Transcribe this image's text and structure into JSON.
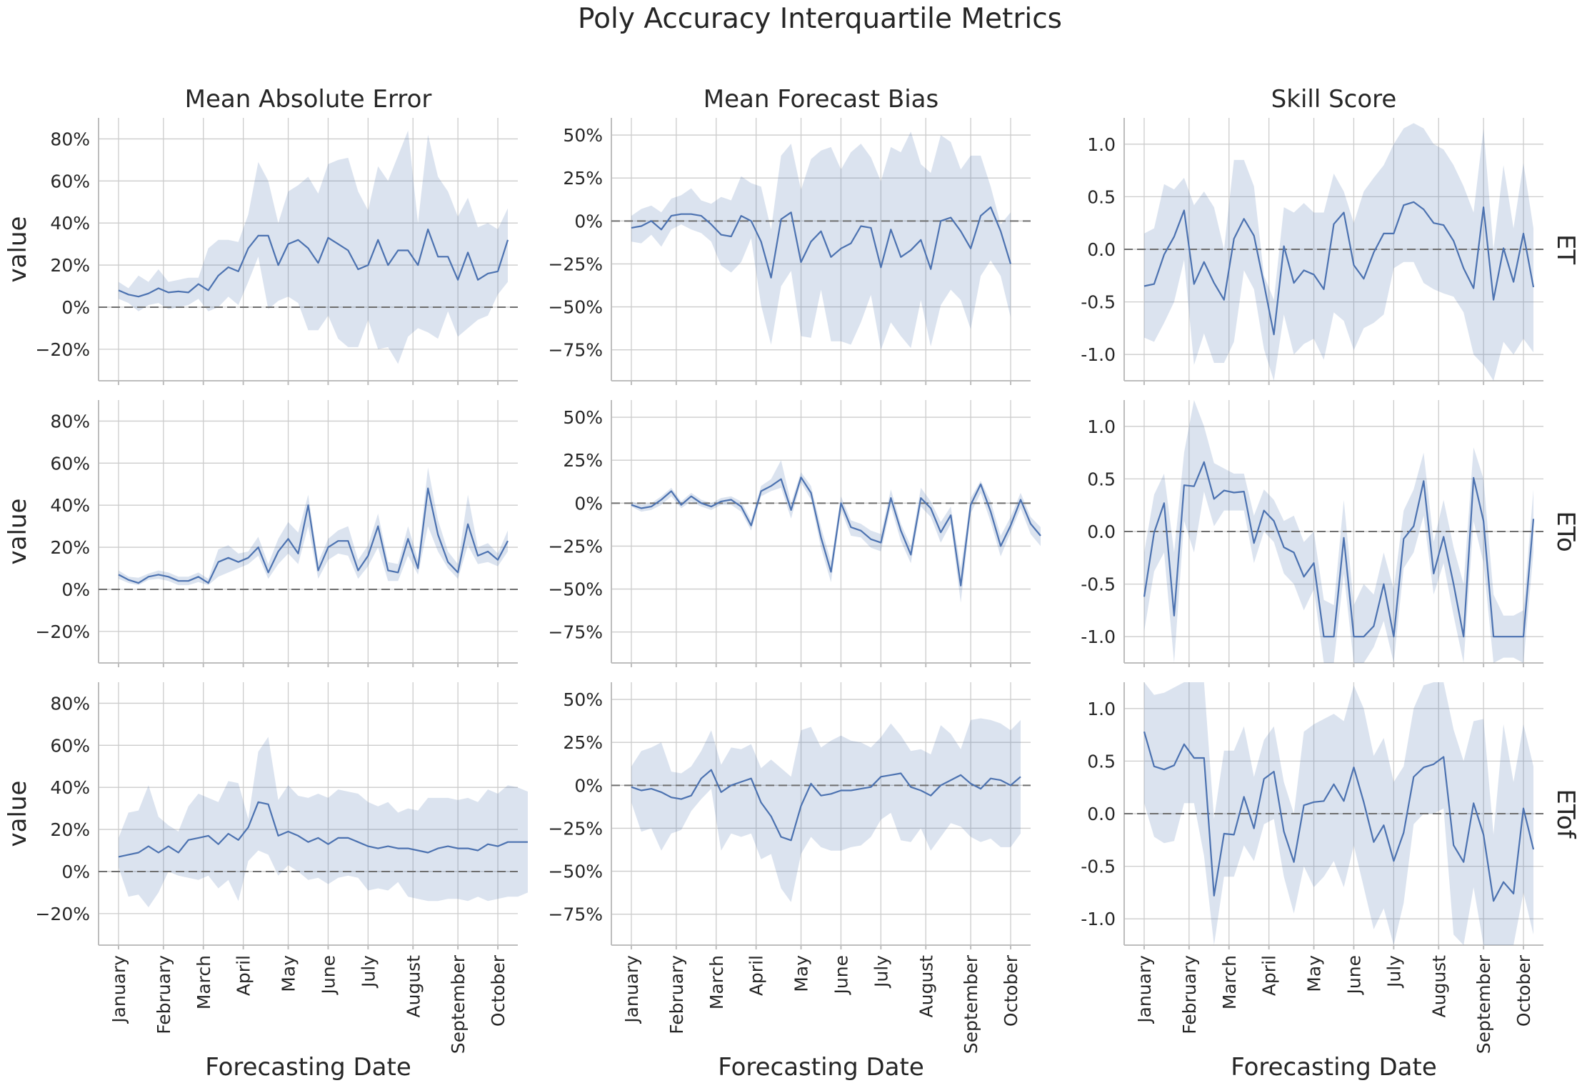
{
  "title": "Poly Accuracy Interquartile Metrics",
  "x_axis_label": "Forecasting Date",
  "y_axis_label": "value",
  "months": [
    "January",
    "February",
    "March",
    "April",
    "May",
    "June",
    "July",
    "August",
    "September",
    "October"
  ],
  "col_titles": [
    "Mean Absolute Error",
    "Mean Forecast Bias",
    "Skill Score"
  ],
  "row_labels": [
    "ET",
    "ETo",
    "ETof"
  ],
  "chart_data": {
    "type": "line",
    "description_of_x": "44 weekly forecasting dates from January to mid October; x values are week index 0-43, month ticks at weeks 0,4.5,8.5,12.5,17,21,25,29.5,34,38",
    "month_tick_weeks": [
      0,
      4.5,
      8.5,
      12.5,
      17,
      21,
      25,
      29.5,
      34,
      38
    ],
    "x_range": [
      -2,
      40
    ],
    "columns": [
      {
        "title": "Mean Absolute Error",
        "ylim": [
          -35,
          90
        ],
        "yticks": [
          -20,
          0,
          20,
          40,
          60,
          80
        ],
        "tick_format": "percent"
      },
      {
        "title": "Mean Forecast Bias",
        "ylim": [
          -93,
          60
        ],
        "yticks": [
          -75,
          -50,
          -25,
          0,
          25,
          50
        ],
        "tick_format": "percent"
      },
      {
        "title": "Skill Score",
        "ylim": [
          -1.25,
          1.25
        ],
        "yticks": [
          -1.0,
          -0.5,
          0.0,
          0.5,
          1.0
        ],
        "tick_format": "decimal"
      }
    ],
    "panels": [
      {
        "row": "ET",
        "col": "Mean Absolute Error",
        "median": [
          8,
          6,
          5,
          6.5,
          9,
          7,
          7.5,
          7,
          11,
          8,
          15,
          19,
          17,
          28,
          34,
          34,
          20,
          30,
          32,
          28,
          21,
          33,
          30,
          27,
          18,
          20,
          32,
          20,
          27,
          27,
          20,
          37,
          24,
          24,
          13,
          26,
          13,
          16,
          17,
          32
        ],
        "q1": [
          4,
          2,
          -2,
          1,
          2,
          -1,
          0,
          1,
          4,
          -2,
          0,
          5,
          1,
          12,
          24,
          -1,
          3,
          5,
          2,
          -11,
          -11,
          -4,
          -15,
          -19,
          -19,
          -6,
          -20,
          -19,
          -27,
          -14,
          -10,
          -12,
          -15,
          -2,
          -14,
          -10,
          -6,
          -4,
          6,
          12
        ],
        "q3": [
          12,
          9,
          15,
          12,
          18,
          12,
          13,
          14,
          14,
          28,
          32,
          32,
          31,
          44,
          69,
          60,
          40,
          55,
          58,
          62,
          54,
          68,
          70,
          71,
          55,
          46,
          67,
          60,
          72,
          84,
          40,
          82,
          62,
          55,
          43,
          52,
          38,
          40,
          37,
          47
        ]
      },
      {
        "row": "ET",
        "col": "Mean Forecast Bias",
        "median": [
          -4,
          -3,
          0,
          -5,
          3,
          4,
          4,
          3,
          -2,
          -8,
          -9,
          3,
          0,
          -12,
          -33,
          1,
          5,
          -24,
          -12,
          -6,
          -21,
          -16,
          -13,
          -3,
          -4,
          -27,
          -5,
          -21,
          -17,
          -11,
          -28,
          0,
          2,
          -6,
          -16,
          3,
          8,
          -6,
          -25
        ],
        "q1": [
          -12,
          -13,
          -8,
          -15,
          -5,
          -2,
          -5,
          -7,
          -12,
          -26,
          -30,
          -24,
          -10,
          -49,
          -72,
          -38,
          -29,
          -67,
          -68,
          -40,
          -70,
          -70,
          -72,
          -59,
          -43,
          -75,
          -59,
          -67,
          -74,
          -46,
          -73,
          -49,
          -40,
          -46,
          -63,
          -32,
          -23,
          -32,
          -56
        ],
        "q3": [
          3,
          7,
          9,
          5,
          13,
          15,
          19,
          12,
          10,
          14,
          12,
          26,
          22,
          20,
          -5,
          38,
          45,
          18,
          36,
          41,
          43,
          30,
          40,
          45,
          37,
          23,
          43,
          40,
          52,
          33,
          28,
          50,
          46,
          30,
          38,
          38,
          20,
          -2,
          5
        ]
      },
      {
        "row": "ET",
        "col": "Skill Score",
        "median": [
          -0.35,
          -0.33,
          -0.05,
          0.12,
          0.37,
          -0.33,
          -0.12,
          -0.32,
          -0.48,
          0.1,
          0.29,
          0.13,
          -0.33,
          -0.81,
          0.03,
          -0.32,
          -0.2,
          -0.24,
          -0.38,
          0.24,
          0.35,
          -0.15,
          -0.28,
          -0.03,
          0.15,
          0.15,
          0.42,
          0.45,
          0.38,
          0.25,
          0.23,
          0.08,
          -0.18,
          -0.37,
          0.4,
          -0.48,
          0.01,
          -0.31,
          0.15,
          -0.36
        ],
        "q1": [
          -0.84,
          -0.88,
          -0.7,
          -0.5,
          -0.1,
          -1.1,
          -0.8,
          -1.08,
          -1.08,
          -0.88,
          -0.2,
          -0.38,
          -0.95,
          -1.25,
          -0.62,
          -1.0,
          -0.9,
          -0.85,
          -1.05,
          -0.6,
          -0.68,
          -0.96,
          -0.75,
          -0.7,
          -0.62,
          -0.18,
          -0.12,
          -0.12,
          -0.32,
          -0.38,
          -0.42,
          -0.45,
          -0.6,
          -1.0,
          -1.1,
          -1.25,
          -0.88,
          -1.0,
          -0.85,
          -0.98
        ],
        "q3": [
          0.15,
          0.2,
          0.62,
          0.57,
          0.68,
          0.42,
          0.55,
          0.4,
          0.0,
          0.85,
          0.85,
          0.6,
          -0.25,
          -0.48,
          0.4,
          0.35,
          0.44,
          0.35,
          0.35,
          0.72,
          0.55,
          0.25,
          0.55,
          0.68,
          0.8,
          1.0,
          1.15,
          1.2,
          1.15,
          1.0,
          0.95,
          0.8,
          0.6,
          0.35,
          1.15,
          0.0,
          0.8,
          0.2,
          0.82,
          0.2
        ]
      },
      {
        "row": "ETo",
        "col": "Mean Absolute Error",
        "median": [
          7,
          4.5,
          3,
          6,
          7,
          6,
          4,
          4,
          6,
          3,
          13,
          15,
          13,
          15,
          20,
          8,
          18,
          24,
          17,
          40,
          9,
          20,
          23,
          23,
          9,
          16,
          30,
          9,
          8,
          24,
          10,
          48,
          26,
          13,
          8,
          31,
          16,
          18,
          14,
          23
        ],
        "q1": [
          5,
          3,
          2,
          4.5,
          5,
          4,
          2,
          2,
          3.5,
          2,
          6,
          8,
          10,
          12,
          16,
          5,
          12,
          17,
          12,
          30,
          5,
          14,
          17,
          16,
          5,
          11,
          20,
          4,
          4,
          16,
          7,
          30,
          18,
          10,
          5,
          21,
          12,
          13,
          11,
          18
        ],
        "q3": [
          9,
          6,
          5.5,
          7.5,
          9,
          8,
          6,
          6,
          8,
          5,
          19,
          21,
          17,
          18,
          25,
          12,
          24,
          32,
          27,
          45,
          13,
          24,
          28,
          30,
          14,
          21,
          36,
          13,
          12,
          30,
          14,
          58,
          33,
          18,
          12,
          45,
          20,
          22,
          17,
          28
        ],
        "note": ""
      },
      {
        "row": "ETo",
        "col": "Mean Forecast Bias",
        "median": [
          -1,
          -3,
          -2,
          2,
          7,
          -1,
          4,
          0,
          -2,
          1,
          2,
          -2,
          -13,
          7,
          10,
          14,
          -4,
          15,
          6,
          -20,
          -40,
          0,
          -14,
          -16,
          -21,
          -23,
          3,
          -16,
          -30,
          3,
          -3,
          -17,
          -7,
          -48,
          -1,
          11,
          -5,
          -25,
          -13,
          2,
          -12,
          -19
        ],
        "q1": [
          -2,
          -5,
          -4,
          -1,
          4,
          -3,
          1,
          -2,
          -4,
          -1,
          -1,
          -5,
          -16,
          4,
          7,
          9,
          -9,
          12,
          2,
          -26,
          -46,
          -4,
          -19,
          -20,
          -26,
          -28,
          -2,
          -22,
          -35,
          -2,
          -8,
          -23,
          -12,
          -58,
          -6,
          6,
          -11,
          -31,
          -17,
          -3,
          -18,
          -25
        ],
        "q3": [
          1,
          -1,
          0,
          4,
          9,
          1,
          6,
          2,
          0,
          3,
          4,
          1,
          -10,
          10,
          14,
          25,
          0,
          18,
          10,
          -14,
          -34,
          4,
          -10,
          -12,
          -16,
          -18,
          8,
          -12,
          -25,
          9,
          1,
          -11,
          -2,
          -38,
          3,
          13,
          1,
          -19,
          -8,
          6,
          -8,
          -14
        ]
      },
      {
        "row": "ETo",
        "col": "Skill Score",
        "median": [
          -0.62,
          -0.01,
          0.27,
          -0.8,
          0.44,
          0.43,
          0.66,
          0.31,
          0.39,
          0.37,
          0.38,
          -0.11,
          0.2,
          0.1,
          -0.15,
          -0.2,
          -0.43,
          -0.3,
          -1.0,
          -1.0,
          -0.06,
          -1.0,
          -1.0,
          -0.9,
          -0.5,
          -1.0,
          -0.07,
          0.05,
          0.48,
          -0.4,
          -0.05,
          -0.5,
          -1.0,
          0.51,
          0.1,
          -1.0,
          -1.0,
          -1.0,
          -1.0,
          0.12
        ],
        "q1": [
          -0.95,
          -0.38,
          -0.2,
          -1.25,
          0.1,
          -0.2,
          0.38,
          0.05,
          0.2,
          0.2,
          0.2,
          -0.3,
          0.0,
          -0.1,
          -0.4,
          -0.5,
          -0.75,
          -0.55,
          -1.25,
          -1.25,
          -0.4,
          -1.25,
          -1.25,
          -1.1,
          -0.85,
          -1.25,
          -0.35,
          -0.2,
          0.15,
          -0.6,
          -0.3,
          -0.8,
          -1.25,
          0.1,
          -0.3,
          -1.25,
          -1.2,
          -1.2,
          -1.25,
          -0.2
        ],
        "q3": [
          -0.2,
          0.35,
          0.55,
          -0.2,
          0.75,
          1.25,
          1.0,
          0.65,
          0.6,
          0.55,
          0.55,
          0.15,
          0.4,
          0.3,
          0.1,
          0.15,
          -0.1,
          0.0,
          -0.65,
          -0.7,
          0.3,
          -0.7,
          -0.5,
          -0.6,
          -0.2,
          -0.55,
          0.2,
          0.4,
          0.75,
          -0.1,
          0.3,
          -0.15,
          -0.5,
          0.8,
          0.5,
          -0.6,
          -0.8,
          -0.8,
          -0.75,
          0.4
        ]
      },
      {
        "row": "ETof",
        "col": "Mean Absolute Error",
        "median": [
          7,
          8,
          9,
          12,
          9,
          12,
          9,
          15,
          16,
          17,
          13,
          18,
          15,
          21,
          33,
          32,
          17,
          19,
          17,
          14,
          16,
          13,
          16,
          16,
          14,
          12,
          11,
          12,
          11,
          11,
          10,
          9,
          11,
          12,
          11,
          11,
          10,
          13,
          12,
          14,
          14,
          14
        ],
        "q1": [
          2,
          -12,
          -11,
          -17,
          -10,
          0,
          -2,
          -3,
          -4,
          -2,
          -8,
          -4,
          -14,
          5,
          10,
          8,
          -2,
          3,
          0,
          -4,
          -3,
          -6,
          -3,
          -2,
          -3,
          -9,
          -8,
          -9,
          -5,
          -12,
          -13,
          -14,
          -14,
          -13,
          -13,
          -14,
          -12,
          -14,
          -13,
          -12,
          -12,
          -10
        ],
        "q3": [
          16,
          28,
          29,
          41,
          26,
          22,
          19,
          31,
          37,
          35,
          33,
          43,
          42,
          25,
          57,
          64,
          34,
          41,
          36,
          35,
          37,
          35,
          39,
          38,
          37,
          33,
          31,
          33,
          28,
          30,
          29,
          35,
          35,
          35,
          34,
          35,
          33,
          39,
          37,
          41,
          40,
          38
        ]
      },
      {
        "row": "ETof",
        "col": "Mean Forecast Bias",
        "median": [
          -1,
          -3,
          -2,
          -4,
          -7,
          -8,
          -6,
          4,
          9,
          -4,
          0,
          2,
          4,
          -10,
          -18,
          -30,
          -32,
          -12,
          1,
          -6,
          -5,
          -3,
          -3,
          -2,
          -1,
          5,
          6,
          7,
          -1,
          -3,
          -6,
          0,
          3,
          6,
          1,
          -2,
          4,
          3,
          0,
          5
        ],
        "q1": [
          -10,
          -27,
          -25,
          -38,
          -28,
          -26,
          -15,
          -8,
          -2,
          -38,
          -28,
          -30,
          -28,
          -43,
          -40,
          -60,
          -68,
          -40,
          -30,
          -36,
          -38,
          -38,
          -36,
          -35,
          -30,
          -20,
          -16,
          -32,
          -33,
          -25,
          -38,
          -30,
          -22,
          -24,
          -30,
          -33,
          -31,
          -36,
          -36,
          -28
        ],
        "q3": [
          11,
          20,
          22,
          25,
          8,
          7,
          11,
          20,
          32,
          12,
          22,
          21,
          24,
          10,
          15,
          10,
          5,
          32,
          34,
          22,
          26,
          29,
          26,
          25,
          22,
          28,
          36,
          29,
          20,
          21,
          18,
          35,
          30,
          21,
          38,
          39,
          38,
          36,
          32,
          38
        ]
      },
      {
        "row": "ETof",
        "col": "Skill Score",
        "median": [
          0.78,
          0.45,
          0.42,
          0.46,
          0.66,
          0.53,
          0.53,
          -0.78,
          -0.19,
          -0.2,
          0.16,
          -0.14,
          0.33,
          0.4,
          -0.17,
          -0.46,
          0.08,
          0.11,
          0.12,
          0.28,
          0.12,
          0.44,
          0.11,
          -0.27,
          -0.11,
          -0.45,
          -0.18,
          0.35,
          0.44,
          0.47,
          0.54,
          -0.3,
          -0.46,
          0.1,
          -0.2,
          -0.83,
          -0.65,
          -0.76,
          0.05,
          -0.34
        ],
        "q1": [
          0.1,
          -0.22,
          -0.28,
          -0.26,
          0.1,
          0.1,
          -0.4,
          -1.25,
          -0.6,
          -0.6,
          -0.3,
          -0.45,
          -0.1,
          -0.05,
          -0.6,
          -0.95,
          -0.5,
          -0.7,
          -0.6,
          -0.45,
          -0.7,
          -0.3,
          -0.7,
          -1.1,
          -0.9,
          -1.25,
          -0.85,
          -0.1,
          0.0,
          0.0,
          0.05,
          -1.15,
          -1.25,
          -0.7,
          -1.25,
          -1.25,
          -1.25,
          -1.25,
          -0.75,
          -1.15
        ],
        "q3": [
          1.25,
          1.13,
          1.15,
          1.2,
          1.25,
          1.25,
          1.25,
          -0.05,
          0.6,
          0.6,
          0.83,
          0.35,
          0.7,
          0.83,
          0.3,
          0.0,
          0.78,
          0.85,
          0.9,
          0.95,
          0.88,
          1.22,
          1.0,
          0.55,
          0.72,
          0.3,
          0.45,
          1.0,
          1.22,
          1.25,
          1.25,
          0.8,
          0.5,
          0.88,
          0.9,
          -0.2,
          0.85,
          0.3,
          0.85,
          0.45
        ]
      }
    ]
  }
}
